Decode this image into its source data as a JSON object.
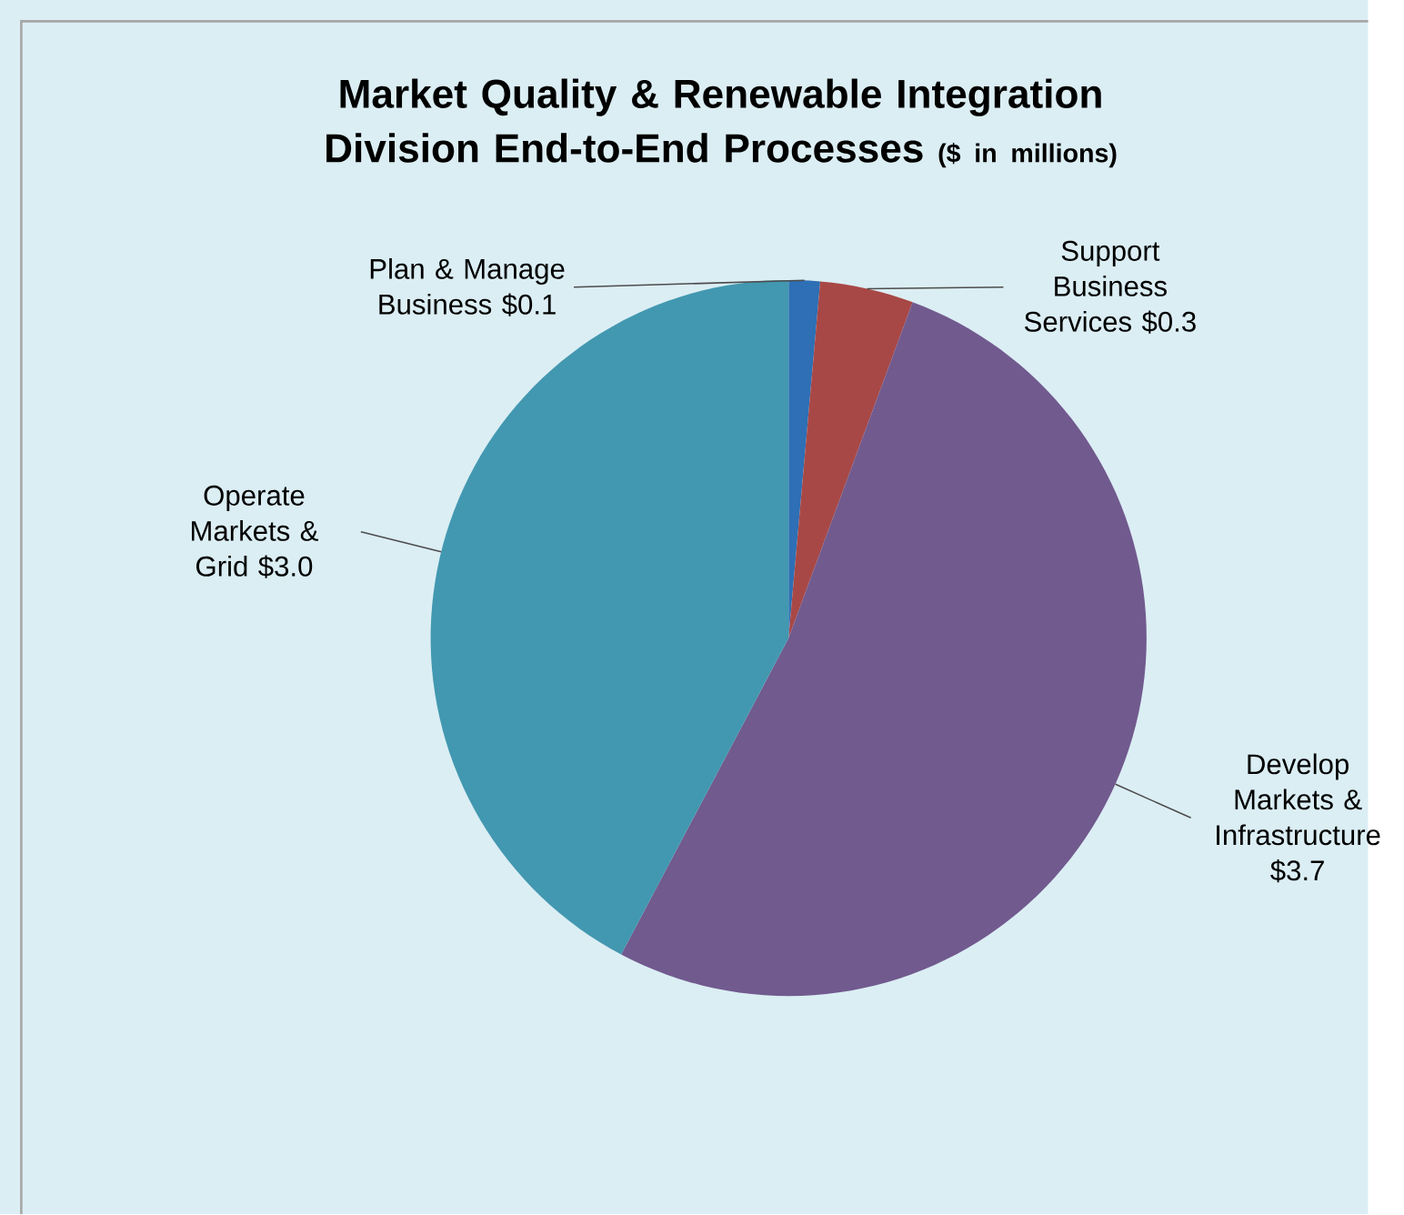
{
  "chart_data": {
    "type": "pie",
    "title": "Market Quality & Renewable Integration Division End-to-End Processes",
    "subtitle": "($ in millions)",
    "categories": [
      "Plan & Manage Business",
      "Support Business Services",
      "Develop Markets & Infrastructure",
      "Operate Markets & Grid"
    ],
    "values": [
      0.1,
      0.3,
      3.7,
      3.0
    ],
    "colors": [
      "#2e6fb5",
      "#a84846",
      "#715a8e",
      "#4298b0"
    ],
    "value_labels": [
      "$0.1",
      "$0.3",
      "$3.7",
      "$3.0"
    ]
  }
}
